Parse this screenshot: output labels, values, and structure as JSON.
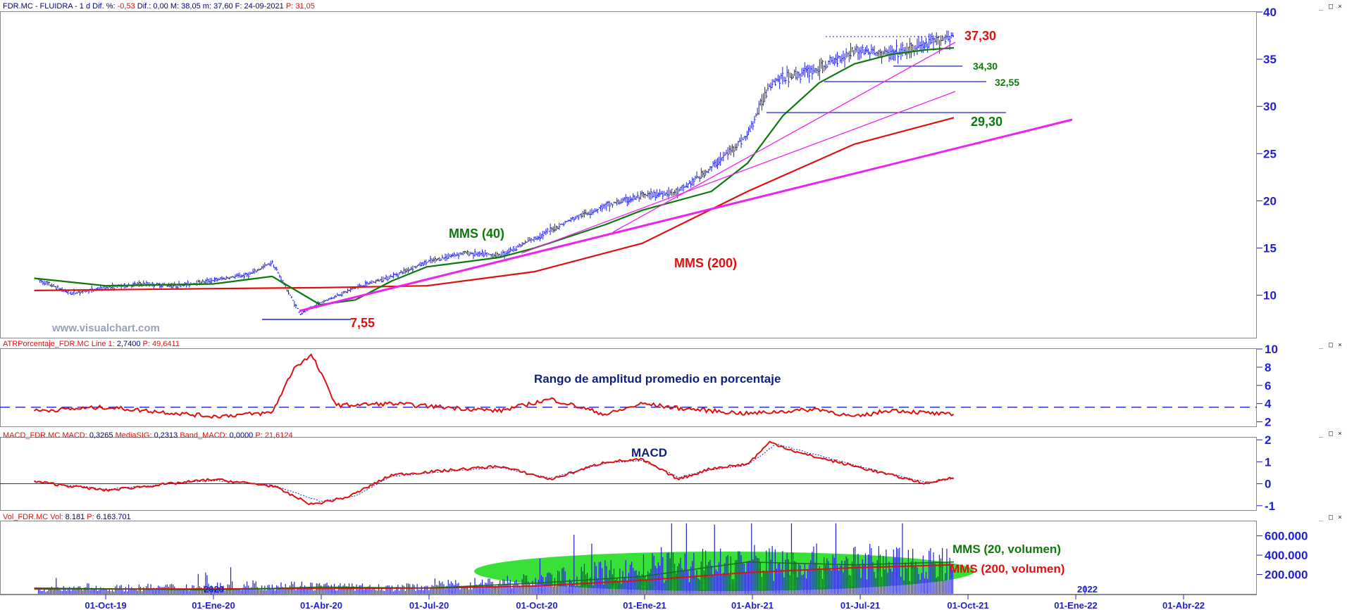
{
  "header": {
    "ticker": "FDR.MC - FLUIDRA -",
    "period": "1 d",
    "diff_pct_label": "Dif. %:",
    "diff_pct": "-0,53",
    "diff_label": "Dif.:",
    "diff": "0,00",
    "max_label": "M:",
    "max": "38,05",
    "min_label": "m:",
    "min": "37,60",
    "date_label": "F:",
    "date": "24-09-2021",
    "p_label": "P:",
    "p": "31,05"
  },
  "panels": {
    "atr": {
      "label": "ATRPorcentaje_FDR.MC",
      "line_label": "Line 1:",
      "line_value": "2,7400",
      "p_label": "P:",
      "p_value": "49,6411"
    },
    "macd": {
      "label": "MACD_FDR.MC",
      "macd_label": "MACD:",
      "macd_value": "0,3265",
      "sig_label": "MediaSIG:",
      "sig_value": "0,2313",
      "band_label": "Band_MACD:",
      "band_value": "0,0000",
      "p_label": "P:",
      "p_value": "21,6124"
    },
    "vol": {
      "label": "Vol_FDR.MC",
      "vol_label": "Vol:",
      "vol_value": "8.181",
      "p_label": "P:",
      "p_value": "6.163.701"
    }
  },
  "window_buttons": {
    "minimize": "_",
    "maximize": "□",
    "close": "×"
  },
  "watermark": "www.visualchart.com",
  "colors": {
    "price": "#1f1fd0",
    "mms40": "#0a7a0a",
    "mms200": "#e01010",
    "trend": "#ee22ee",
    "label_red": "#e01010",
    "label_green": "#0a7a0a",
    "volume_ellipse": "#22dd22"
  },
  "chart_data": [
    {
      "type": "line",
      "name": "price",
      "x_ticks": [
        "01-Oct-19",
        "01-Ene-20",
        "01-Abr-20",
        "01-Jul-20",
        "01-Oct-20",
        "01-Ene-21",
        "01-Abr-21",
        "01-Jul-21",
        "01-Oct-21",
        "01-Ene-22",
        "01-Abr-22"
      ],
      "x_year_labels": [
        "2020",
        "2022"
      ],
      "y_ticks": [
        10,
        15,
        20,
        25,
        30,
        35,
        40
      ],
      "ylim": [
        5.5,
        40
      ],
      "series": [
        {
          "name": "",
          "x": [
            "2019-08-01",
            "2019-09-01",
            "2019-10-01",
            "2019-11-01",
            "2019-12-01",
            "2020-01-01",
            "2020-02-01",
            "2020-02-20",
            "2020-03-15",
            "2020-04-01",
            "2020-05-01",
            "2020-06-01",
            "2020-07-01",
            "2020-08-01",
            "2020-09-01",
            "2020-10-01",
            "2020-11-01",
            "2020-12-01",
            "2021-01-01",
            "2021-02-01",
            "2021-03-01",
            "2021-04-01",
            "2021-04-20",
            "2021-05-01",
            "2021-06-01",
            "2021-07-01",
            "2021-08-01",
            "2021-09-01",
            "2021-09-24"
          ],
          "values": [
            11.8,
            10.2,
            10.8,
            11.2,
            11.0,
            11.6,
            12.2,
            13.5,
            8.0,
            9.2,
            10.8,
            12.0,
            13.5,
            14.5,
            14.2,
            16.0,
            18.0,
            19.5,
            20.5,
            21.0,
            23.5,
            27.0,
            32.5,
            33.0,
            34.0,
            36.0,
            35.5,
            36.5,
            37.6
          ]
        },
        {
          "name": "MMS (40)",
          "x": [
            "2019-08-01",
            "2019-10-01",
            "2020-01-01",
            "2020-02-20",
            "2020-04-01",
            "2020-05-01",
            "2020-06-01",
            "2020-07-01",
            "2020-09-01",
            "2020-10-01",
            "2020-12-01",
            "2021-01-01",
            "2021-03-01",
            "2021-04-01",
            "2021-05-01",
            "2021-06-01",
            "2021-07-01",
            "2021-08-01",
            "2021-09-01",
            "2021-09-24"
          ],
          "values": [
            11.8,
            11.0,
            11.2,
            12.0,
            9.0,
            9.5,
            11.5,
            13.0,
            14.0,
            15.0,
            17.5,
            19.0,
            21.0,
            24.0,
            29.0,
            32.5,
            34.5,
            35.5,
            36.0,
            36.2
          ]
        },
        {
          "name": "MMS (200)",
          "x": [
            "2019-08-01",
            "2020-01-01",
            "2020-04-01",
            "2020-07-01",
            "2020-10-01",
            "2021-01-01",
            "2021-04-01",
            "2021-07-01",
            "2021-09-24"
          ],
          "values": [
            10.5,
            10.7,
            10.8,
            11.0,
            12.5,
            15.5,
            21.0,
            26.0,
            28.8
          ]
        }
      ],
      "annotations": [
        "37,30",
        "34,30",
        "32,55",
        "29,30",
        "7,55",
        "MMS (40)",
        "MMS (200)"
      ]
    },
    {
      "type": "line",
      "name": "atr",
      "title": "Rango de amplitud promedio en porcentaje",
      "y_ticks": [
        2,
        4,
        6,
        8,
        10
      ],
      "ylim": [
        1.5,
        10
      ],
      "reference_value": 3.6,
      "series": [
        {
          "name": "",
          "x": [
            "2019-08-01",
            "2019-10-01",
            "2020-01-01",
            "2020-02-20",
            "2020-03-10",
            "2020-03-25",
            "2020-04-15",
            "2020-06-01",
            "2020-09-01",
            "2020-10-15",
            "2020-12-01",
            "2021-01-01",
            "2021-02-01",
            "2021-04-01",
            "2021-06-01",
            "2021-07-01",
            "2021-08-01",
            "2021-09-24"
          ],
          "values": [
            3.2,
            3.6,
            2.6,
            3.0,
            8.0,
            9.3,
            3.8,
            4.0,
            3.2,
            4.5,
            2.8,
            4.0,
            3.5,
            2.9,
            3.4,
            2.5,
            3.3,
            2.74
          ]
        }
      ]
    },
    {
      "type": "line",
      "name": "macd",
      "title": "MACD",
      "y_ticks": [
        -1,
        0,
        1,
        2
      ],
      "ylim": [
        -1.2,
        2.1
      ],
      "series": [
        {
          "name": "MACD",
          "x": [
            "2019-08-01",
            "2019-10-01",
            "2020-01-01",
            "2020-02-20",
            "2020-03-25",
            "2020-04-25",
            "2020-06-01",
            "2020-09-01",
            "2020-10-15",
            "2020-12-01",
            "2021-01-01",
            "2021-02-01",
            "2021-03-01",
            "2021-04-01",
            "2021-04-20",
            "2021-05-15",
            "2021-07-01",
            "2021-08-01",
            "2021-09-01",
            "2021-09-24"
          ],
          "values": [
            0.1,
            -0.3,
            0.2,
            -0.1,
            -0.95,
            -0.6,
            0.4,
            0.8,
            0.2,
            1.0,
            1.1,
            0.2,
            0.7,
            0.9,
            1.9,
            1.4,
            0.8,
            0.4,
            0.0,
            0.33
          ]
        },
        {
          "name": "MediaSIG",
          "x": [
            "2019-08-01",
            "2019-10-01",
            "2020-01-01",
            "2020-02-20",
            "2020-04-01",
            "2020-05-01",
            "2020-06-01",
            "2020-09-01",
            "2020-10-15",
            "2020-12-01",
            "2021-01-01",
            "2021-02-01",
            "2021-03-01",
            "2021-04-01",
            "2021-04-25",
            "2021-05-20",
            "2021-07-01",
            "2021-08-01",
            "2021-09-01",
            "2021-09-24"
          ],
          "values": [
            0.1,
            -0.25,
            0.15,
            -0.05,
            -0.8,
            -0.55,
            0.35,
            0.75,
            0.25,
            0.95,
            1.05,
            0.3,
            0.65,
            0.85,
            1.8,
            1.45,
            0.85,
            0.45,
            0.05,
            0.23
          ]
        }
      ]
    },
    {
      "type": "bar",
      "name": "volume",
      "y_ticks": [
        "200.000",
        "400.000",
        "600.000"
      ],
      "ylim": [
        0,
        750000
      ],
      "series": [
        {
          "name": "MMS (20, volumen)",
          "x": [
            "2019-08-01",
            "2020-01-01",
            "2020-04-01",
            "2020-07-01",
            "2020-10-01",
            "2021-01-01",
            "2021-04-01",
            "2021-07-01",
            "2021-09-24"
          ],
          "values": [
            60000,
            40000,
            70000,
            60000,
            110000,
            180000,
            330000,
            300000,
            330000
          ]
        },
        {
          "name": "MMS (200, volumen)",
          "x": [
            "2019-08-01",
            "2020-01-01",
            "2020-04-01",
            "2020-07-01",
            "2020-10-01",
            "2021-01-01",
            "2021-04-01",
            "2021-07-01",
            "2021-09-24"
          ],
          "values": [
            50000,
            50000,
            55000,
            60000,
            80000,
            140000,
            220000,
            270000,
            300000
          ]
        }
      ],
      "annotations": [
        "MMS (20, volumen)",
        "MMS (200, volumen)"
      ]
    }
  ]
}
